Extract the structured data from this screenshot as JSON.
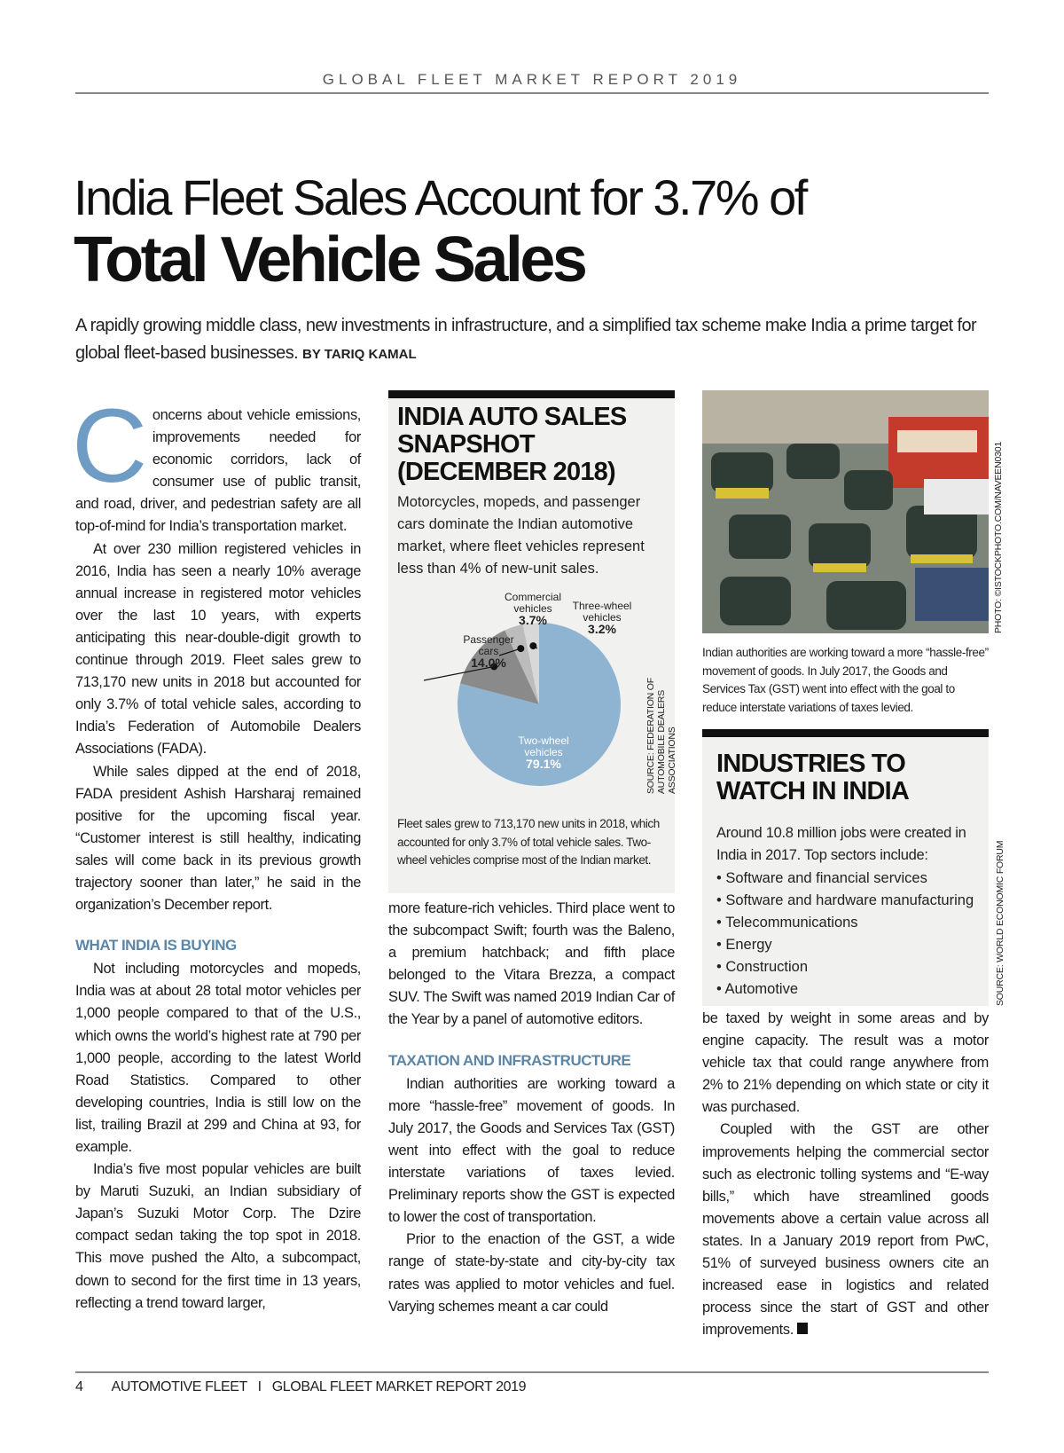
{
  "running_header": "GLOBAL FLEET MARKET REPORT 2019",
  "title_line1": "India Fleet Sales Account for 3.7% of",
  "title_line2": "Total Vehicle Sales",
  "subtitle": "A rapidly growing middle class, new investments in infrastructure, and a simplified tax scheme make India a prime target for global fleet-based businesses.",
  "byline": "BY TARIQ KAMAL",
  "col1": {
    "dropcap": "C",
    "p1": "oncerns about vehicle emissions, improvements needed for economic corridors, lack of consumer use of public transit, and road, driver, and pedestrian safety are all top-of-mind for India’s transportation market.",
    "p2": "At over 230 million registered vehicles in 2016, India has seen a nearly 10% average annual increase in registered motor vehicles over the last 10 years, with experts anticipating this near-double-digit growth to continue through 2019. Fleet sales grew to 713,170 new units in 2018 but accounted for only 3.7% of total vehicle sales, according to India’s Federation of Automobile Dealers Associations (FADA).",
    "p3": "While sales dipped at the end of 2018, FADA president Ashish Harsharaj remained positive for the upcoming fiscal year. “Customer interest is still healthy, indicating sales will come back in its previous growth trajectory sooner than later,” he said in the organization’s December report.",
    "heading": "WHAT INDIA IS BUYING",
    "p4": "Not including motorcycles and mopeds, India was at about 28 total motor vehicles per 1,000 people compared to that of the U.S., which owns the world’s highest rate at 790 per 1,000 people, according to the latest World Road Statistics. Compared to other developing countries, India is still low on the list, trailing Brazil at 299 and China at 93, for example.",
    "p5": "India’s five most popular vehicles are built by Maruti Suzuki, an Indian subsidiary of Japan’s Suzuki Motor Corp. The Dzire compact sedan taking the top spot in 2018. This move pushed the Alto, a subcompact, down to second for the first time in 13 years, reflecting a trend toward larger,"
  },
  "snapshot": {
    "title": "INDIA AUTO SALES SNAPSHOT (DECEMBER 2018)",
    "description": "Motorcycles, mopeds, and passenger cars dominate the Indian automotive market, where fleet vehicles represent less than 4% of new-unit sales.",
    "source": "SOURCE: FEDERATION OF AUTOMOBILE DEALERS ASSOCIATIONS",
    "caption": "Fleet sales grew to 713,170 new units in 2018, which accounted for only 3.7% of total vehicle sales. Two-wheel vehicles comprise most of the Indian market."
  },
  "chart_data": {
    "type": "pie",
    "categories": [
      "Two-wheel vehicles",
      "Passenger cars",
      "Commercial vehicles",
      "Three-wheel vehicles"
    ],
    "values": [
      79.1,
      14.0,
      3.7,
      3.2
    ],
    "labels": [
      "79.1%",
      "14.0%",
      "3.7%",
      "3.2%"
    ],
    "colors": [
      "#8fb4d1",
      "#8a8a8a",
      "#bcbcbc",
      "#d8d8d8"
    ]
  },
  "col2": {
    "p1": "more feature-rich vehicles. Third place went to the subcompact Swift; fourth was the Baleno, a premium hatchback; and fifth place belonged to the Vitara Brezza, a compact SUV. The Swift was named 2019 Indian Car of the Year by a panel of automotive editors.",
    "heading": "TAXATION AND INFRASTRUCTURE",
    "p2": "Indian authorities are working toward a more “hassle-free” movement of goods. In July 2017, the Goods and Services Tax (GST) went into effect with the goal to reduce interstate variations of taxes levied. Preliminary reports show the GST is expected to lower the cost of transportation.",
    "p3": "Prior to the enaction of the GST, a wide range of state-by-state and city-by-city tax rates was applied to motor vehicles and fuel. Varying schemes meant a car could"
  },
  "photo": {
    "credit": "PHOTO: ©ISTOCKPHOTO.COM/NAVEEN0301",
    "caption": "Indian authorities are working toward a more “hassle-free” movement of goods. In July 2017, the Goods and Services Tax (GST) went into effect with the goal to reduce interstate variations of taxes levied."
  },
  "industries": {
    "title": "INDUSTRIES TO WATCH IN INDIA",
    "intro": "Around 10.8 million jobs were created in India in 2017. Top sectors include:",
    "items": [
      "Software and financial services",
      "Software and hardware manufacturing",
      "Telecommunications",
      "Energy",
      "Construction",
      "Automotive"
    ],
    "source": "SOURCE: WORLD ECONOMIC FORUM"
  },
  "col3": {
    "p1": "be taxed by weight in some areas and by engine capacity. The result was a motor vehicle tax that could range anywhere from 2% to 21% depending on which state or city it was purchased.",
    "p2": "Coupled with the GST are other improvements helping the commercial sector such as electronic tolling systems and “E-way bills,” which have streamlined goods movements above a certain value across all states. In a January 2019 report from PwC, 51% of surveyed business owners cite an increased ease in logistics and related process since the start of GST and other improvements."
  },
  "footer": {
    "page": "4",
    "publication": "AUTOMOTIVE FLEET",
    "separator": "I",
    "report": "GLOBAL FLEET MARKET REPORT 2019"
  }
}
